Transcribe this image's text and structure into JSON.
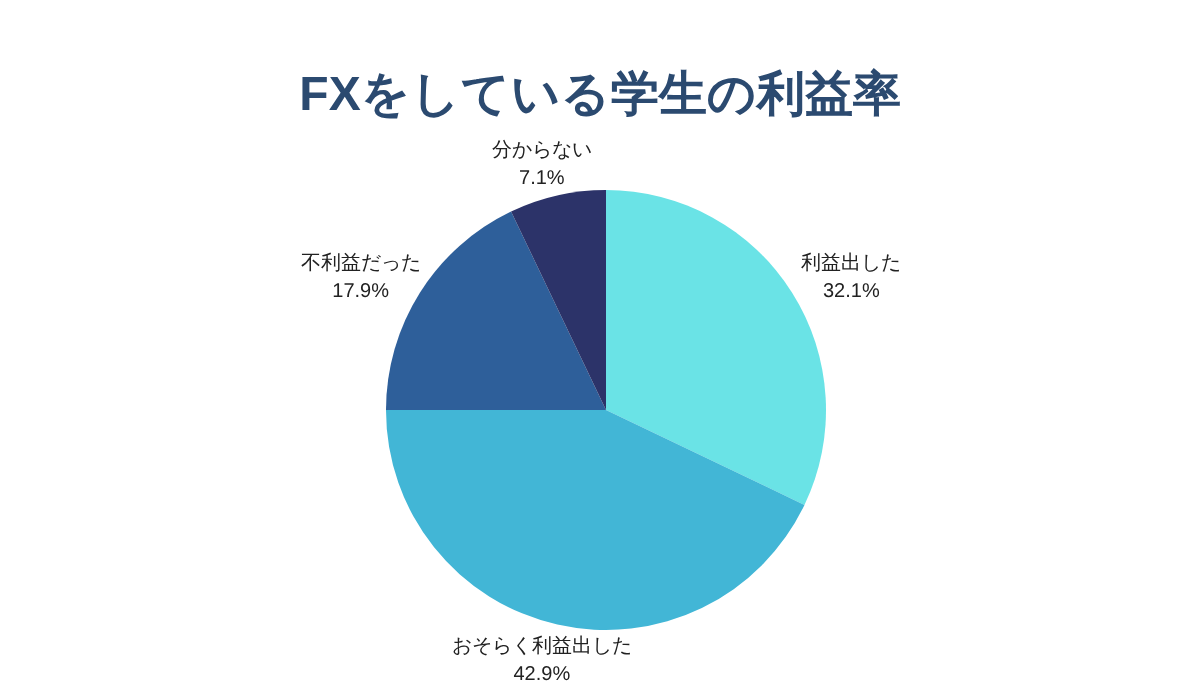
{
  "chart_data": {
    "type": "pie",
    "title": "FXをしている学生の利益率",
    "categories": [
      "利益出した",
      "おそらく利益出した",
      "不利益だった",
      "分からない"
    ],
    "values": [
      32.1,
      42.9,
      17.9,
      7.1
    ],
    "value_labels": [
      "32.1%",
      "42.9%",
      "17.9%",
      "7.1%"
    ],
    "colors": [
      "#6ae3e6",
      "#42b6d6",
      "#2e5f9a",
      "#2c3369"
    ]
  }
}
